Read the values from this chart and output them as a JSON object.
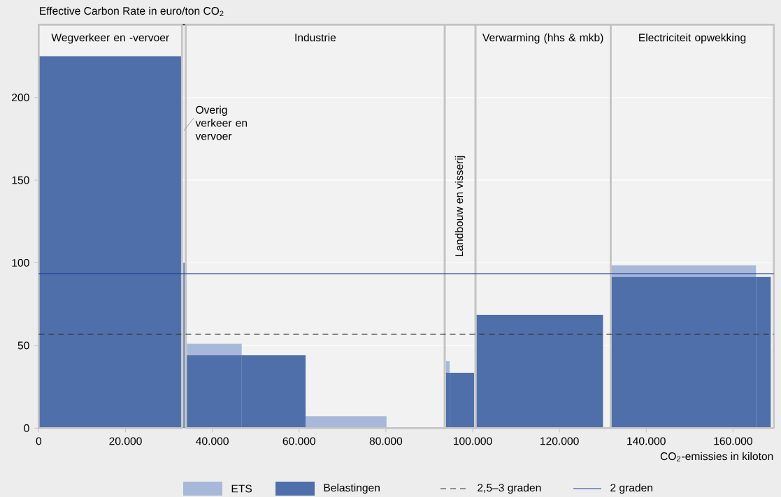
{
  "chart_data": {
    "type": "histogram",
    "ylabel": "Effective Carbon Rate in euro/ton CO$_{2}$",
    "xlabel": "CO$_{2}$-emissies in kiloton",
    "series": [
      {
        "name": "ETS",
        "color": "#a8b8d9",
        "values": [
          null,
          null,
          null,
          null,
          51,
          null,
          7.2,
          null,
          40.6,
          null,
          null,
          null,
          null,
          98.4,
          null
        ]
      },
      {
        "name": "Belastingen",
        "color": "#4f6fab",
        "values": [
          225,
          null,
          100,
          null,
          44,
          44,
          null,
          null,
          33.5,
          33.5,
          null,
          68.5,
          null,
          91.4,
          91.4
        ]
      }
    ],
    "bins": [
      0,
      33000,
      33340,
      33600,
      34150,
      46780,
      61500,
      80150,
      93840,
      94700,
      100340,
      100870,
      130040,
      131900,
      165300,
      168700
    ],
    "xlim": [
      0,
      169400
    ],
    "ylim": [
      0,
      244
    ],
    "xticks": [
      0,
      {
        "value": 20000,
        "label": "20.000"
      },
      {
        "value": 40000,
        "label": "40.000"
      },
      {
        "value": 60000,
        "label": "60.000"
      },
      {
        "value": 80000,
        "label": "80.000"
      },
      {
        "value": 100000,
        "label": "100.000"
      },
      {
        "value": 120000,
        "label": "120.000"
      },
      {
        "value": 140000,
        "label": "140.000"
      },
      {
        "value": 160000,
        "label": "160.000"
      }
    ],
    "yticks": [
      0,
      50,
      100,
      150,
      200
    ],
    "ref_lines": [
      {
        "axis": "y",
        "value": 56.8,
        "label": "2,5–3 graden",
        "color": "#333333",
        "line_style": "dashed"
      },
      {
        "axis": "y",
        "value": 93.4,
        "label": "2 graden",
        "color": "#1a3e9a",
        "line_style": "solid"
      }
    ],
    "bands": [
      {
        "axis": "x",
        "from": 0,
        "to": 33000,
        "label": "Wegverkeer en -vervoer",
        "color": "#f2f2f2"
      },
      {
        "axis": "x",
        "from": 33900,
        "to": 93560,
        "label": "Industrie",
        "color": "#f2f2f2"
      },
      {
        "axis": "x",
        "from": 93560,
        "to": 100650,
        "label": "Landbouw en visserij",
        "color": "#f2f2f2"
      },
      {
        "axis": "x",
        "from": 100650,
        "to": 131800,
        "label": "Verwarming (hhs & mkb)",
        "color": "#f2f2f2"
      },
      {
        "axis": "x",
        "from": 131800,
        "to": 169400,
        "label": "Electriciteit opwekking",
        "color": "#f2f2f2"
      }
    ],
    "annotations": [
      {
        "text": "Overig verkeer en vervoer",
        "x": 33470,
        "y": 180
      }
    ],
    "grid": "y",
    "legend": "bottom"
  }
}
